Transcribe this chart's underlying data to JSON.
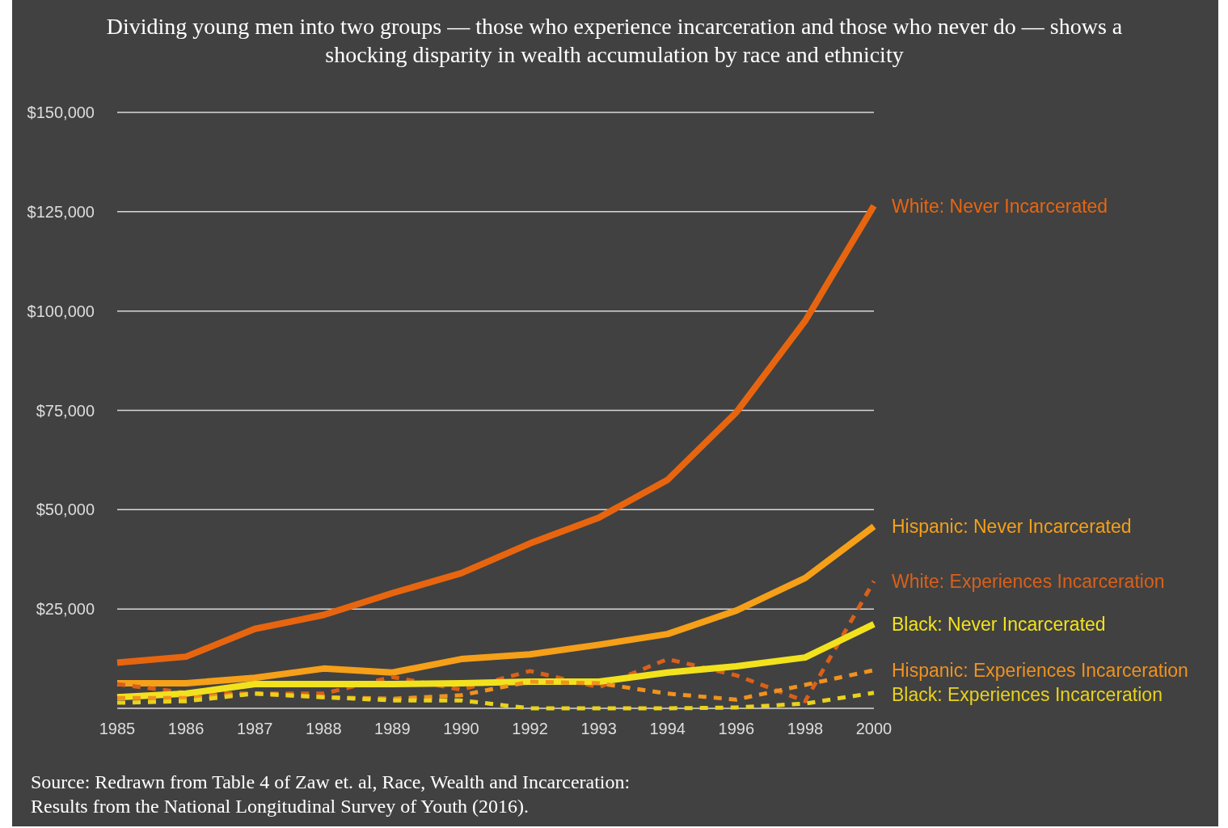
{
  "chart_data": {
    "type": "line",
    "title": "Dividing young men into two groups — those who experience incarceration and those who never do — shows a shocking disparity in wealth accumulation by race and ethnicity",
    "categories": [
      "1985",
      "1986",
      "1987",
      "1988",
      "1989",
      "1990",
      "1992",
      "1993",
      "1994",
      "1996",
      "1998",
      "2000"
    ],
    "series": [
      {
        "name": "White: Never Incarcerated",
        "color": "#e8650f",
        "line_style": "solid",
        "values": [
          11500,
          13000,
          20000,
          23500,
          29000,
          34000,
          41500,
          48000,
          57500,
          74500,
          97500,
          126500
        ]
      },
      {
        "name": "Hispanic: Never Incarcerated",
        "color": "#f5a018",
        "line_style": "solid",
        "values": [
          6300,
          6300,
          7700,
          10000,
          9000,
          12400,
          13600,
          16000,
          18700,
          24600,
          32800,
          45800
        ]
      },
      {
        "name": "White: Experiences Incarceration",
        "color": "#d9601a",
        "line_style": "dashed",
        "values": [
          6100,
          3900,
          3700,
          3700,
          7900,
          4700,
          9400,
          5300,
          12400,
          8300,
          1800,
          32000
        ]
      },
      {
        "name": "Black: Never Incarcerated",
        "color": "#f2e21d",
        "line_style": "solid",
        "values": [
          2800,
          3700,
          6100,
          6100,
          6100,
          6300,
          6700,
          6700,
          9000,
          10600,
          12800,
          21200
        ]
      },
      {
        "name": "Hispanic: Experiences Incarceration",
        "color": "#f0921e",
        "line_style": "dashed",
        "values": [
          2600,
          2600,
          3700,
          2800,
          2400,
          3300,
          6700,
          6300,
          3700,
          2200,
          5900,
          9600
        ]
      },
      {
        "name": "Black: Experiences Incarceration",
        "color": "#e8d21c",
        "line_style": "dashed",
        "values": [
          1400,
          1800,
          3700,
          2800,
          2000,
          2000,
          0,
          0,
          0,
          200,
          1200,
          3900
        ]
      }
    ],
    "ylim": [
      0,
      150000
    ],
    "yticks": [
      {
        "value": 0,
        "label": null
      },
      {
        "value": 25000,
        "label": "$25,000"
      },
      {
        "value": 50000,
        "label": "$50,000"
      },
      {
        "value": 75000,
        "label": "$75,000"
      },
      {
        "value": 100000,
        "label": "$100,000"
      },
      {
        "value": 125000,
        "label": "$125,000"
      },
      {
        "value": 150000,
        "label": "$150,000"
      }
    ],
    "grid": "y",
    "annotations": [
      "Source: Redrawn from Table 4 of Zaw et. al, Race, Wealth and Incarceration: Results from the National Longitudinal Survey of Youth (2016)."
    ]
  }
}
